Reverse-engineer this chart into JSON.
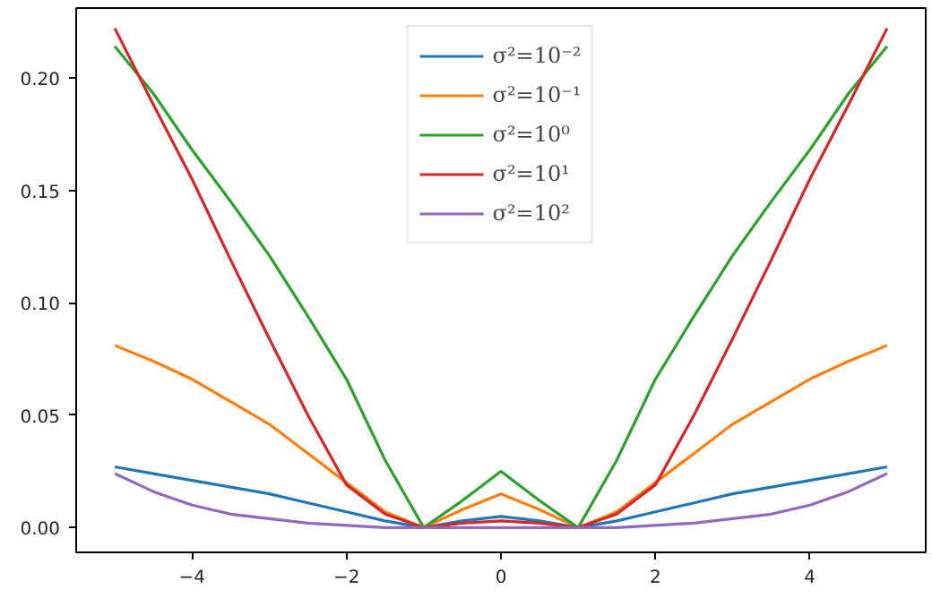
{
  "chart_data": {
    "type": "line",
    "x": [
      -5,
      -4.5,
      -4,
      -3.5,
      -3,
      -2.5,
      -2,
      -1.5,
      -1,
      -0.5,
      0,
      0.5,
      1,
      1.5,
      2,
      2.5,
      3,
      3.5,
      4,
      4.5,
      5
    ],
    "series": [
      {
        "name": "σ²=10⁻²",
        "color": "#1f77b4",
        "values": [
          0.027,
          0.024,
          0.021,
          0.018,
          0.015,
          0.011,
          0.007,
          0.003,
          0.0,
          0.003,
          0.005,
          0.003,
          0.0,
          0.003,
          0.007,
          0.011,
          0.015,
          0.018,
          0.021,
          0.024,
          0.027
        ]
      },
      {
        "name": "σ²=10⁻¹",
        "color": "#ff7f0e",
        "values": [
          0.081,
          0.074,
          0.066,
          0.056,
          0.046,
          0.033,
          0.02,
          0.007,
          0.0,
          0.008,
          0.015,
          0.008,
          0.0,
          0.007,
          0.02,
          0.033,
          0.046,
          0.056,
          0.066,
          0.074,
          0.081
        ]
      },
      {
        "name": "σ²=10⁰",
        "color": "#2ca02c",
        "values": [
          0.214,
          0.193,
          0.168,
          0.145,
          0.121,
          0.094,
          0.066,
          0.03,
          0.0,
          0.012,
          0.025,
          0.012,
          0.0,
          0.03,
          0.066,
          0.094,
          0.121,
          0.145,
          0.168,
          0.193,
          0.214
        ]
      },
      {
        "name": "σ²=10¹",
        "color": "#d62728",
        "values": [
          0.222,
          0.188,
          0.155,
          0.119,
          0.084,
          0.05,
          0.019,
          0.006,
          0.0,
          0.002,
          0.003,
          0.002,
          0.0,
          0.006,
          0.019,
          0.05,
          0.084,
          0.119,
          0.155,
          0.188,
          0.222
        ]
      },
      {
        "name": "σ²=10²",
        "color": "#9467bd",
        "values": [
          0.024,
          0.016,
          0.01,
          0.006,
          0.004,
          0.002,
          0.001,
          0.0,
          0.0,
          0.0,
          0.0,
          0.0,
          0.0,
          0.0,
          0.001,
          0.002,
          0.004,
          0.006,
          0.01,
          0.016,
          0.024
        ]
      }
    ],
    "xlim": [
      -5.5,
      5.5
    ],
    "ylim": [
      -0.011,
      0.231
    ],
    "xticks": [
      {
        "value": -4,
        "label": "−4"
      },
      {
        "value": -2,
        "label": "−2"
      },
      0,
      2,
      4
    ],
    "yticks": [
      {
        "value": 0,
        "label": "0.00"
      },
      {
        "value": 0.05,
        "label": "0.05"
      },
      {
        "value": 0.1,
        "label": "0.10"
      },
      {
        "value": 0.15,
        "label": "0.15"
      },
      {
        "value": 0.2,
        "label": "0.20"
      }
    ],
    "legend": "top",
    "grid": false,
    "line_style": "solid"
  }
}
